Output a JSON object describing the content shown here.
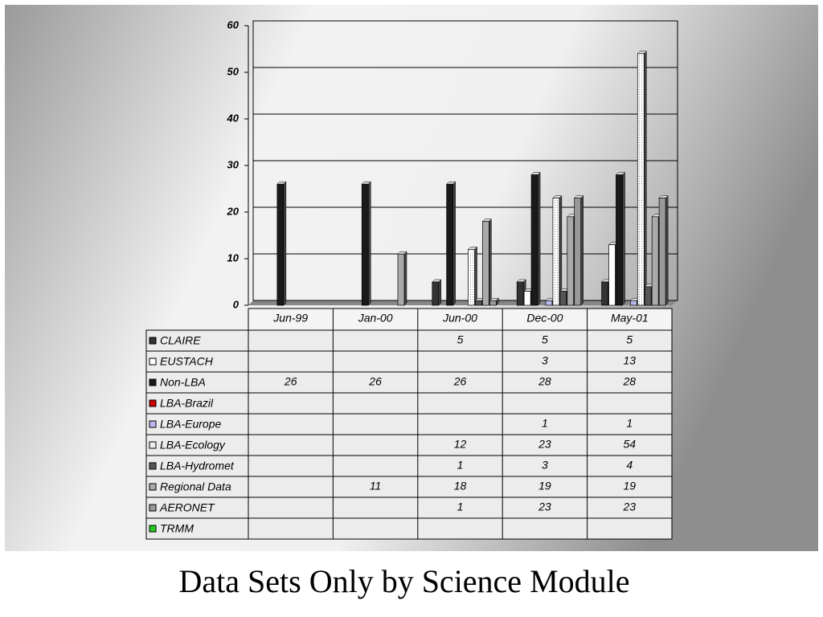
{
  "chart_data": {
    "type": "bar",
    "title": "Data Sets Only by Science Module",
    "categories": [
      "Jun-99",
      "Jan-00",
      "Jun-00",
      "Dec-00",
      "May-01"
    ],
    "series": [
      {
        "name": "CLAIRE",
        "color": "#333333",
        "values": [
          null,
          null,
          5,
          5,
          5
        ]
      },
      {
        "name": "EUSTACH",
        "color": "#ffffff",
        "values": [
          null,
          null,
          null,
          3,
          13
        ]
      },
      {
        "name": "Non-LBA",
        "color": "#1a1a1a",
        "values": [
          26,
          26,
          26,
          28,
          28
        ]
      },
      {
        "name": "LBA-Brazil",
        "color": "#cc0000",
        "values": [
          null,
          null,
          null,
          null,
          null
        ]
      },
      {
        "name": "LBA-Europe",
        "color": "#b8b8f0",
        "values": [
          null,
          null,
          null,
          1,
          1
        ]
      },
      {
        "name": "LBA-Ecology",
        "color": "#eeeeee",
        "values": [
          null,
          null,
          12,
          23,
          54
        ]
      },
      {
        "name": "LBA-Hydromet",
        "color": "#555555",
        "values": [
          null,
          null,
          1,
          3,
          4
        ]
      },
      {
        "name": "Regional Data",
        "color": "#aaaaaa",
        "values": [
          null,
          11,
          18,
          19,
          19
        ]
      },
      {
        "name": "AERONET",
        "color": "#999999",
        "values": [
          null,
          null,
          1,
          23,
          23
        ]
      },
      {
        "name": "TRMM",
        "color": "#22cc22",
        "values": [
          null,
          null,
          null,
          null,
          null
        ]
      }
    ],
    "ylim": [
      0,
      60
    ],
    "yticks": [
      0,
      10,
      20,
      30,
      40,
      50,
      60
    ],
    "grid": true
  }
}
